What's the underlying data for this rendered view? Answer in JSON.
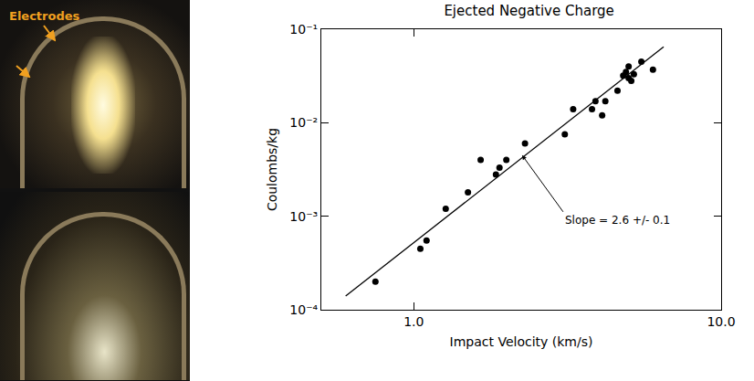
{
  "photo": {
    "label": "Electrodes"
  },
  "chart_data": {
    "type": "scatter",
    "title": "Ejected Negative Charge",
    "x_label": "Impact Velocity (km/s)",
    "y_label": "Coulombs/kg",
    "log": true,
    "grid": false,
    "xlim": [
      0.5,
      10
    ],
    "xticks": [
      {
        "value": 1,
        "label": "1.0"
      },
      {
        "value": 10,
        "label": "10.0"
      }
    ],
    "ylim": [
      0.0001,
      0.1
    ],
    "yticks": [
      {
        "value": 0.0001,
        "label": "10⁻⁴"
      },
      {
        "value": 0.001,
        "label": "10⁻³"
      },
      {
        "value": 0.01,
        "label": "10⁻²"
      },
      {
        "value": 0.1,
        "label": "10⁻¹"
      }
    ],
    "series": [
      {
        "type": "scatter",
        "marker": "circle",
        "color": "#000000",
        "x": [
          0.75,
          1.05,
          1.1,
          1.27,
          1.5,
          1.65,
          1.85,
          1.9,
          2.0,
          2.3,
          3.1,
          3.3,
          3.8,
          3.9,
          4.1,
          4.2,
          4.6,
          4.8,
          4.9,
          5.0,
          5.0,
          5.1,
          5.2,
          5.5,
          6.0
        ],
        "values": [
          0.0002,
          0.00045,
          0.00055,
          0.0012,
          0.0018,
          0.004,
          0.0028,
          0.0033,
          0.004,
          0.006,
          0.0075,
          0.014,
          0.014,
          0.017,
          0.012,
          0.017,
          0.022,
          0.032,
          0.035,
          0.04,
          0.03,
          0.028,
          0.033,
          0.045,
          0.037
        ]
      },
      {
        "type": "line",
        "line_style": "solid",
        "color": "#000000",
        "x": [
          0.6,
          6.5
        ],
        "values": [
          0.00014,
          0.065
        ]
      }
    ],
    "annotations": [
      {
        "text": "Slope = 2.6 +/- 0.1",
        "x": 2.25,
        "y": 0.0045
      }
    ]
  }
}
